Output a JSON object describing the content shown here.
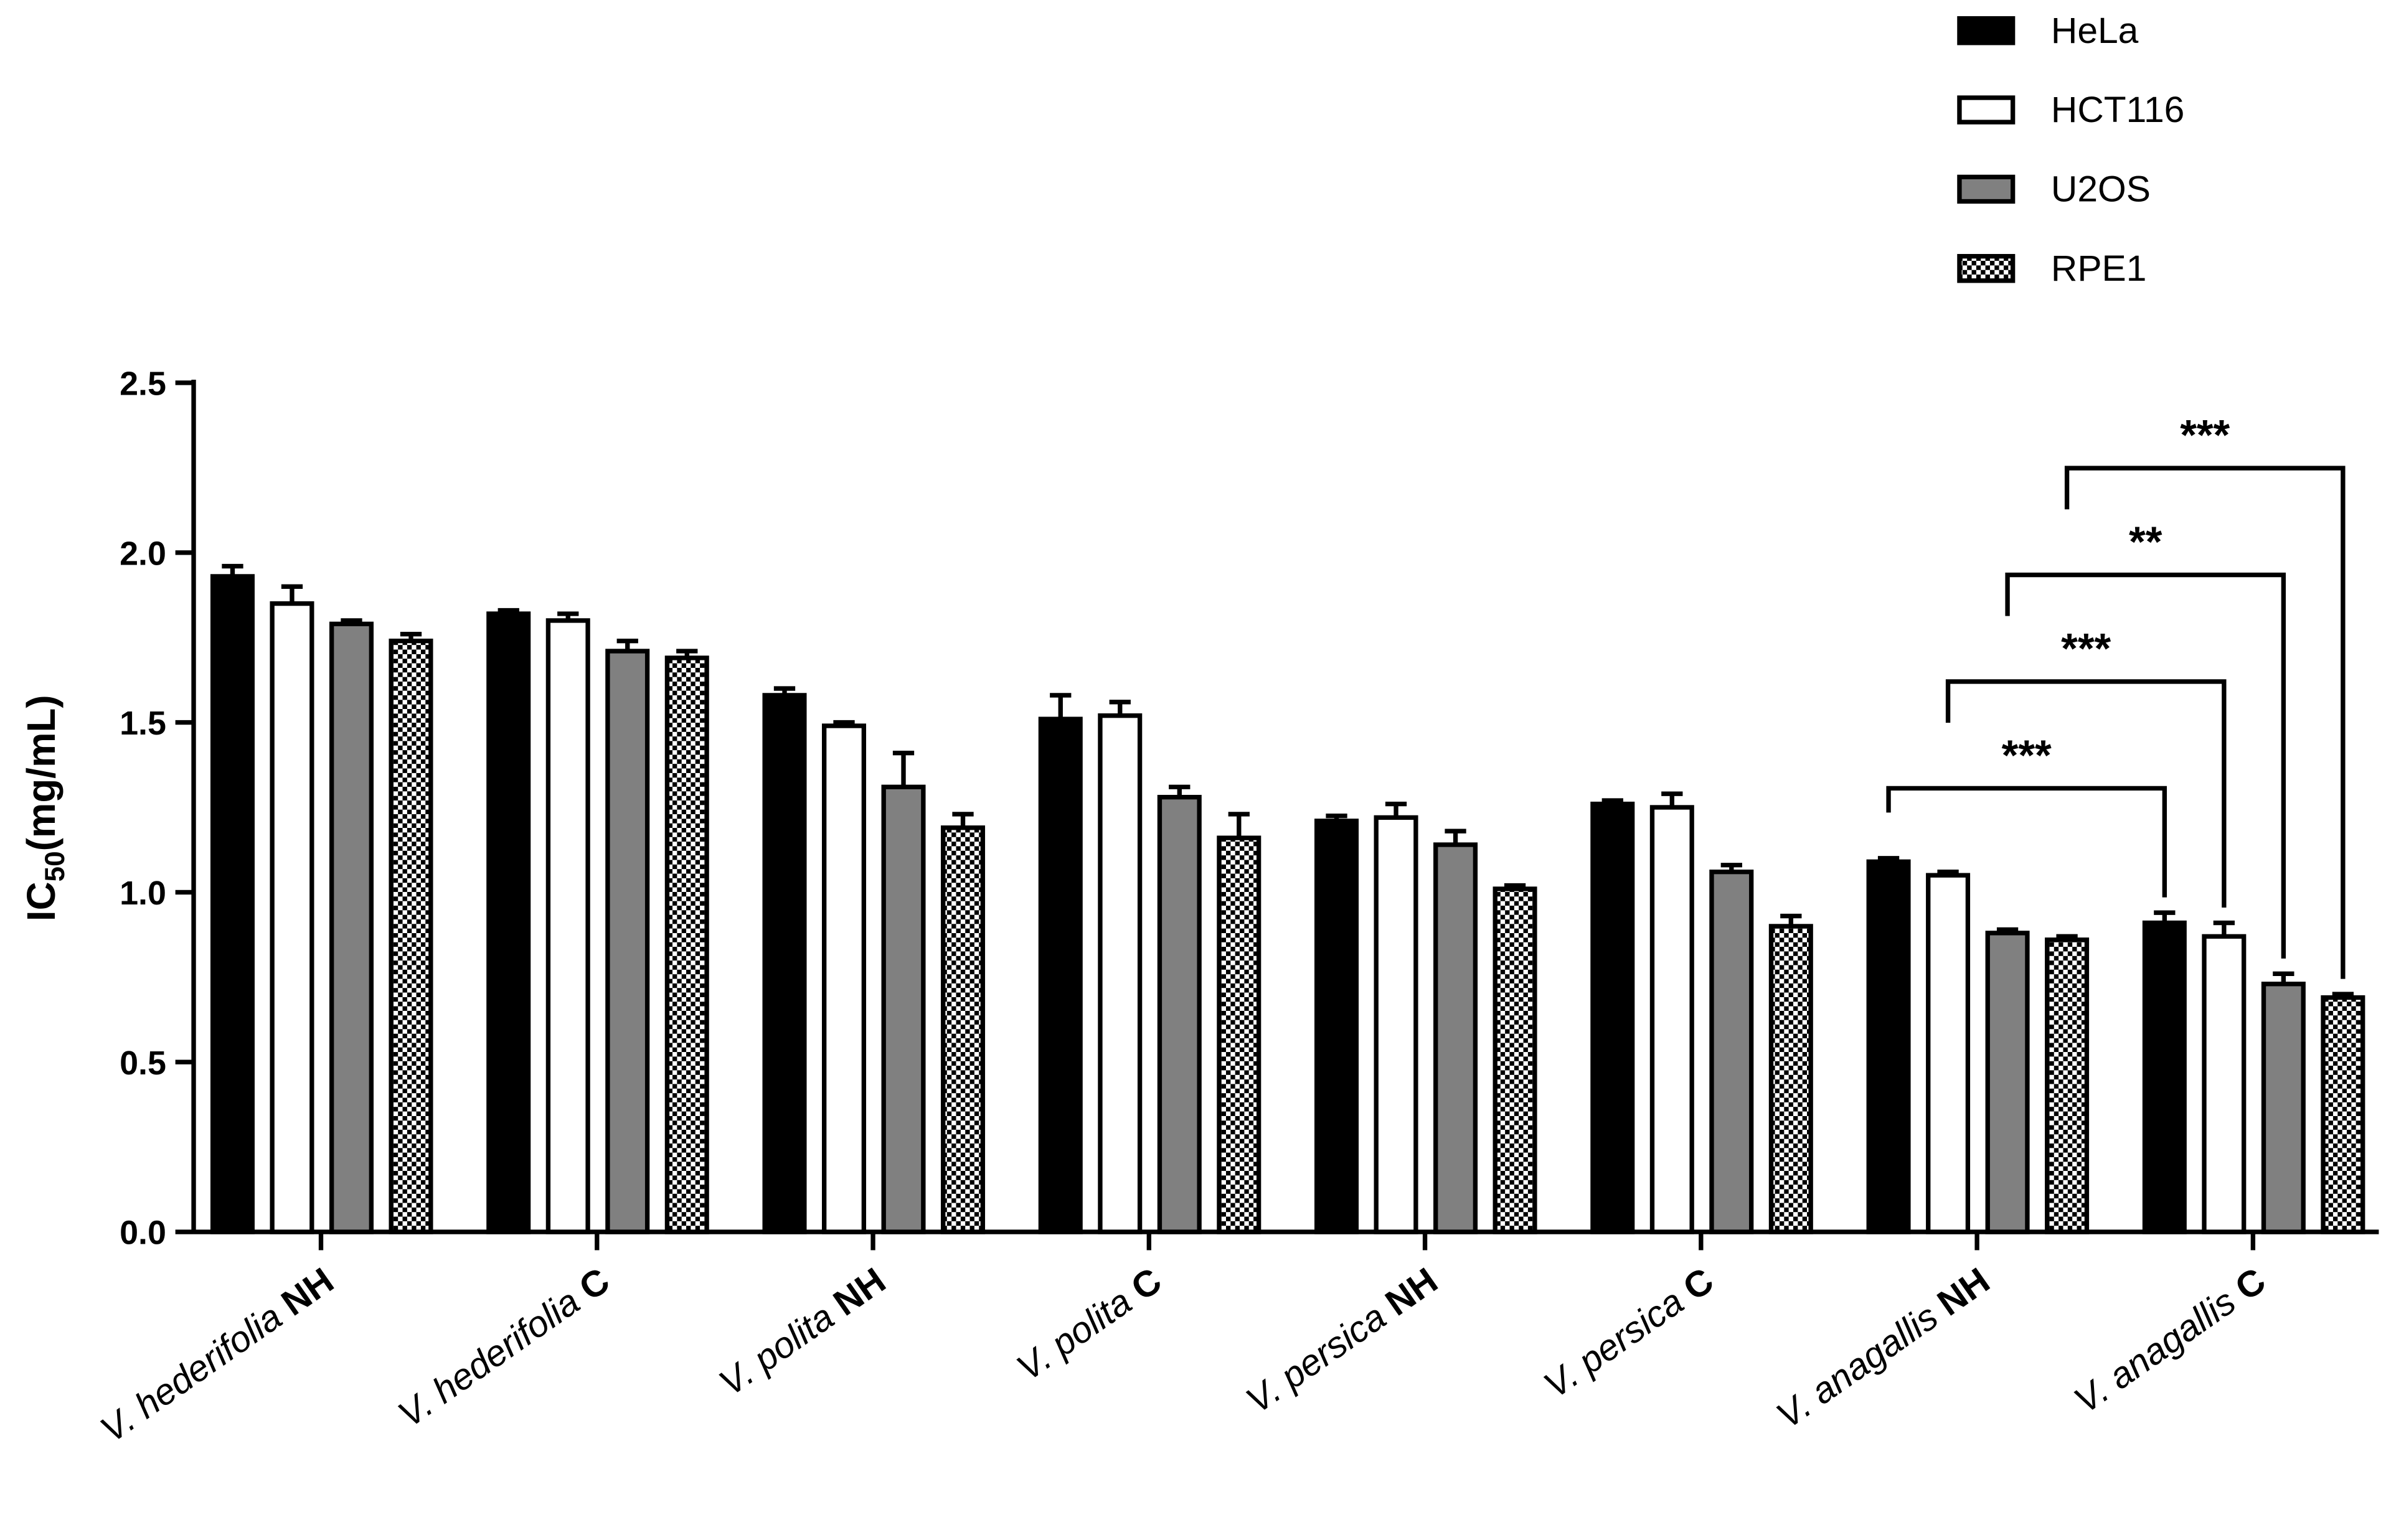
{
  "chart_data": {
    "type": "bar",
    "y_label": {
      "main": "IC",
      "subscript": "50",
      "unit": "(mg/mL)"
    },
    "categories": [
      {
        "species": "V. hederifolia",
        "treatment": "NH"
      },
      {
        "species": "V. hederifolia",
        "treatment": "C"
      },
      {
        "species": "V. polita",
        "treatment": "NH"
      },
      {
        "species": "V. polita",
        "treatment": "C"
      },
      {
        "species": "V. persica",
        "treatment": "NH"
      },
      {
        "species": "V. persica",
        "treatment": "C"
      },
      {
        "species": "V. anagallis",
        "treatment": "NH"
      },
      {
        "species": "V. anagallis",
        "treatment": "C"
      }
    ],
    "series": [
      {
        "name": "HeLa",
        "color": "#000000",
        "values": [
          1.93,
          1.82,
          1.58,
          1.51,
          1.21,
          1.26,
          1.09,
          0.91
        ],
        "errors": [
          0.03,
          0.01,
          0.02,
          0.07,
          0.015,
          0.01,
          0.01,
          0.03
        ]
      },
      {
        "name": "HCT116",
        "color": "#ffffff",
        "values": [
          1.85,
          1.8,
          1.49,
          1.52,
          1.22,
          1.25,
          1.05,
          0.87
        ],
        "errors": [
          0.05,
          0.02,
          0.01,
          0.04,
          0.04,
          0.04,
          0.01,
          0.04
        ]
      },
      {
        "name": "U2OS",
        "color": "#808080",
        "values": [
          1.79,
          1.71,
          1.31,
          1.28,
          1.14,
          1.06,
          0.88,
          0.73
        ],
        "errors": [
          0.01,
          0.03,
          0.1,
          0.03,
          0.04,
          0.02,
          0.01,
          0.03
        ]
      },
      {
        "name": "RPE1",
        "color": "#ffffff",
        "pattern": "checker",
        "values": [
          1.74,
          1.69,
          1.19,
          1.16,
          1.01,
          0.9,
          0.86,
          0.69
        ],
        "errors": [
          0.02,
          0.02,
          0.04,
          0.07,
          0.01,
          0.03,
          0.01,
          0.01
        ]
      }
    ],
    "annotations": [
      {
        "label": "***",
        "series": 0,
        "from": 6,
        "to": 7
      },
      {
        "label": "***",
        "series": 1,
        "from": 6,
        "to": 7
      },
      {
        "label": "**",
        "series": 2,
        "from": 6,
        "to": 7
      },
      {
        "label": "***",
        "series": 3,
        "from": 6,
        "to": 7
      }
    ],
    "ylim": [
      0,
      2.5
    ],
    "yticks": [
      {
        "value": 0,
        "label": "0.0"
      },
      {
        "value": 0.5,
        "label": "0.5"
      },
      {
        "value": 1,
        "label": "1.0"
      },
      {
        "value": 1.5,
        "label": "1.5"
      },
      {
        "value": 2,
        "label": "2.0"
      },
      {
        "value": 2.5,
        "label": "2.5"
      }
    ],
    "grid": false,
    "legend": "top-right"
  }
}
